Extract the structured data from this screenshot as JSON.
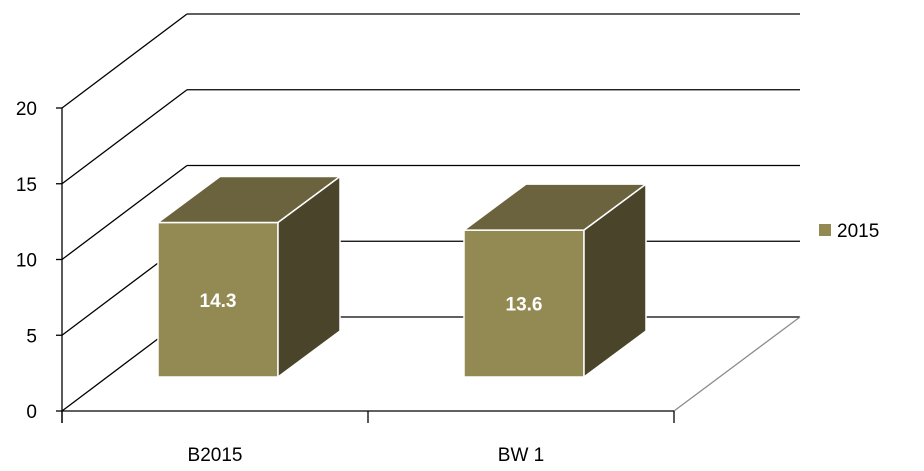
{
  "chart_data": {
    "type": "bar",
    "style": "3d-column",
    "categories": [
      "B2015",
      "BW 1"
    ],
    "series": [
      {
        "name": "2015",
        "values": [
          14.3,
          13.6
        ],
        "color": "#938953"
      }
    ],
    "data_labels": [
      "14.3",
      "13.6"
    ],
    "y_ticks": [
      "0",
      "5",
      "10",
      "15",
      "20"
    ],
    "ylim": [
      0,
      20
    ],
    "grid": true,
    "legend": "right",
    "colors": {
      "front": "#938953",
      "top": "#6b633d",
      "side": "#4a452a",
      "grid": "#000000",
      "floor_edge": "#8c8c8c"
    }
  }
}
